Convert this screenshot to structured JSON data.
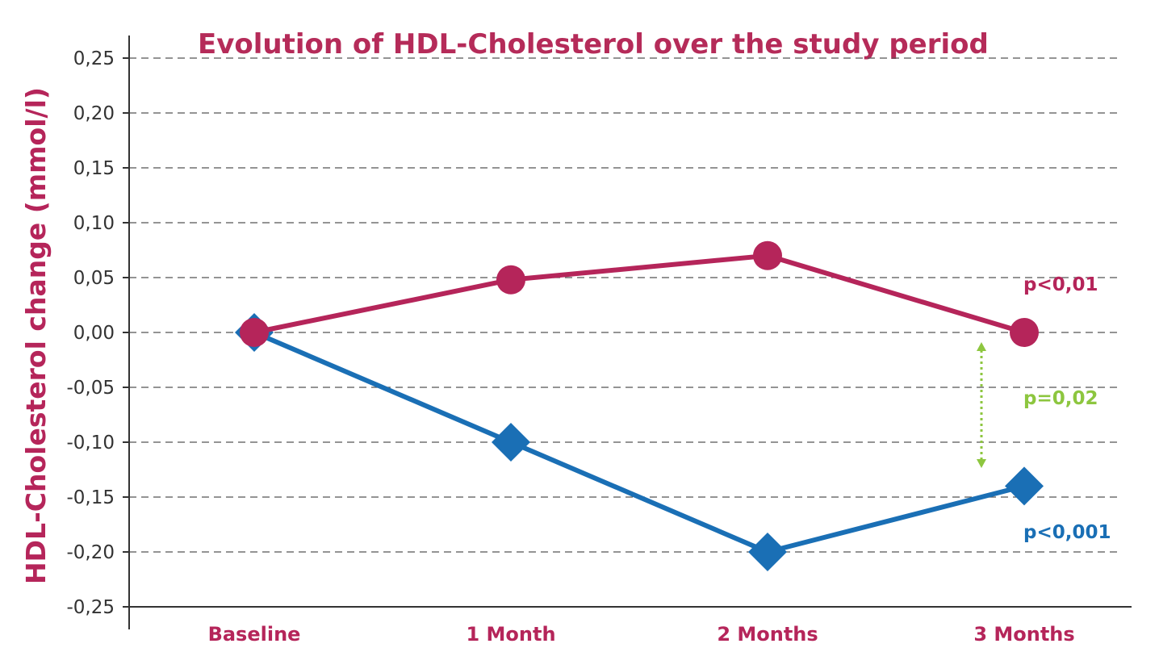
{
  "colors": {
    "title": "#b52b59",
    "series_red": "#b5255a",
    "series_blue": "#1a6fb5",
    "significance_green": "#8dc63f",
    "grid": "#555555",
    "axis": "#333333"
  },
  "chart_data": {
    "type": "line",
    "title_parts": [
      {
        "text": "Evolution of ",
        "bold": false
      },
      {
        "text": "HDL-Cholesterol",
        "bold": true
      },
      {
        "text": " over the study period",
        "bold": false
      }
    ],
    "ylabel": "HDL-Cholesterol change (mmol/l)",
    "xlabel": "",
    "categories": [
      "Baseline",
      "1 Month",
      "2 Months",
      "3 Months"
    ],
    "ylim": [
      -0.25,
      0.25
    ],
    "yticks": [
      0.25,
      0.2,
      0.15,
      0.1,
      0.05,
      0.0,
      -0.05,
      -0.1,
      -0.15,
      -0.2,
      -0.25
    ],
    "ytick_labels": [
      "0,25",
      "0,20",
      "0,15",
      "0,10",
      "0,05",
      "0,00",
      "-0,05",
      "-0,10",
      "-0,15",
      "-0,20",
      "-0,25"
    ],
    "grid": "horizontal dashed",
    "series": [
      {
        "color": "#1a6fb5",
        "marker": "diamond",
        "values": [
          0.0,
          -0.1,
          -0.2,
          -0.14
        ]
      },
      {
        "color": "#b5255a",
        "marker": "circle",
        "values": [
          0.0,
          0.048,
          0.07,
          0.0
        ]
      }
    ],
    "annotations": [
      {
        "text": "p<0,01",
        "color": "#b5255a"
      },
      {
        "text": "p=0,02",
        "color": "#8dc63f"
      },
      {
        "text": "p<0,001",
        "color": "#1a6fb5"
      }
    ]
  }
}
